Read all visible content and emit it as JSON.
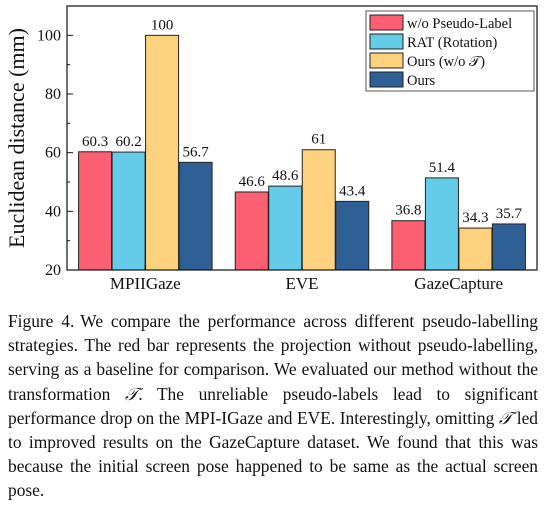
{
  "chart_data": {
    "type": "bar",
    "title": "",
    "xlabel": "",
    "ylabel": "Euclidean distance (mm)",
    "ylim": [
      20,
      110
    ],
    "yticks": [
      20,
      40,
      60,
      80,
      100
    ],
    "grid": false,
    "legend_position": "top-right",
    "categories": [
      "MPIIGaze",
      "EVE",
      "GazeCapture"
    ],
    "series": [
      {
        "name": "w/o Pseudo-Label",
        "color": "#fc5e72",
        "values": [
          60.3,
          46.6,
          36.8
        ],
        "labels": [
          "60.3",
          "46.6",
          "36.8"
        ]
      },
      {
        "name": "RAT (Rotation)",
        "color": "#64cbe8",
        "values": [
          60.2,
          48.6,
          51.4
        ],
        "labels": [
          "60.2",
          "48.6",
          "51.4"
        ]
      },
      {
        "name": "Ours (w/o 𝒯)",
        "color": "#fdd27f",
        "values": [
          100,
          61,
          34.3
        ],
        "labels": [
          "100",
          "61",
          "34.3"
        ]
      },
      {
        "name": "Ours",
        "color": "#2e6095",
        "values": [
          56.7,
          43.4,
          35.7
        ],
        "labels": [
          "56.7",
          "43.4",
          "35.7"
        ]
      }
    ]
  },
  "caption": {
    "label": "Figure 4.",
    "text_a": "We compare the performance across different pseudo-labelling strategies. The red bar represents the projection without pseudo-labelling, serving as a baseline for comparison. We evaluated our method without the transformation ",
    "symbol_1": "𝒯",
    "text_b": ". The unreliable pseudo-labels lead to significant performance drop on the MPI-IGaze and EVE. Interestingly, omitting ",
    "symbol_2": "𝒯",
    "text_c": " led to improved results on the GazeCapture dataset. We found that this was because the initial screen pose happened to be same as the actual screen pose."
  }
}
